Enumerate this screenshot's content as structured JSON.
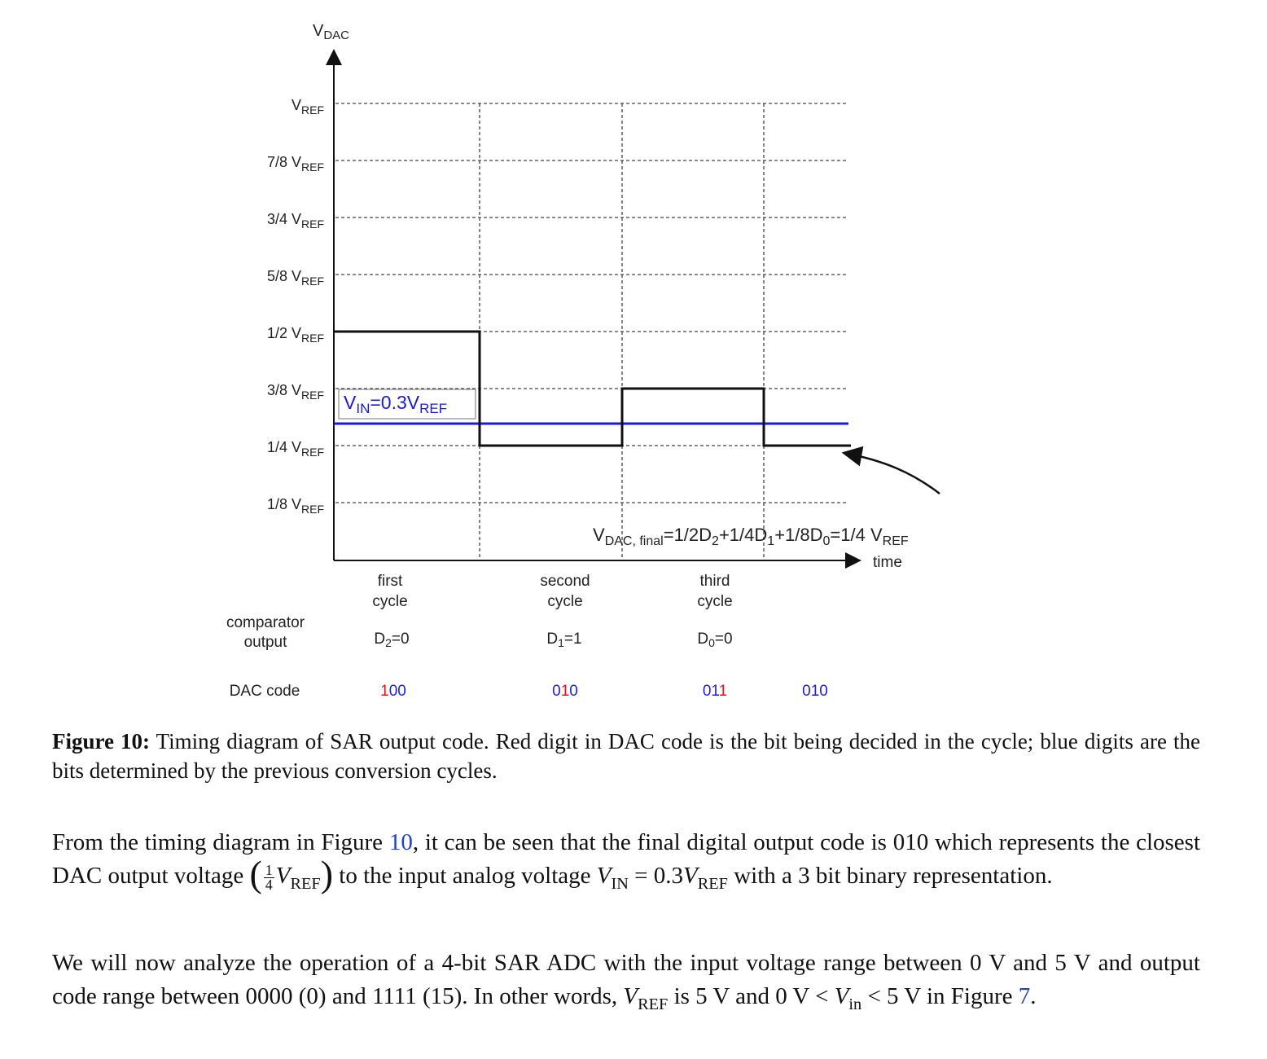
{
  "diagram": {
    "y_axis_label": "V",
    "y_axis_label_sub": "DAC",
    "x_axis_label": "time",
    "y_ticks": [
      {
        "main": "V",
        "sub": "REF"
      },
      {
        "main": "7/8 V",
        "sub": "REF"
      },
      {
        "main": "3/4 V",
        "sub": "REF"
      },
      {
        "main": "5/8 V",
        "sub": "REF"
      },
      {
        "main": "1/2 V",
        "sub": "REF"
      },
      {
        "main": "3/8 V",
        "sub": "REF"
      },
      {
        "main": "1/4 V",
        "sub": "REF"
      },
      {
        "main": "1/8 V",
        "sub": "REF"
      }
    ],
    "vin_label": {
      "v": "V",
      "sub1": "IN",
      "mid": "=0.3V",
      "sub2": "REF"
    },
    "vdac_final_label": {
      "a": "V",
      "a_sub": "DAC, final",
      "b": "=1/2D",
      "b_sub": "2",
      "c": "+1/4D",
      "c_sub": "1",
      "d": "+1/8D",
      "d_sub": "0",
      "e": "=1/4 V",
      "e_sub": "REF"
    },
    "cycles": [
      {
        "line1": "first",
        "line2": "cycle",
        "bit": "D",
        "bit_sub": "2",
        "bit_val": "=0"
      },
      {
        "line1": "second",
        "line2": "cycle",
        "bit": "D",
        "bit_sub": "1",
        "bit_val": "=1"
      },
      {
        "line1": "third",
        "line2": "cycle",
        "bit": "D",
        "bit_sub": "0",
        "bit_val": "=0"
      }
    ],
    "row_labels": {
      "comparator_line1": "comparator",
      "comparator_line2": "output",
      "dac_code": "DAC code"
    },
    "dac_codes": [
      {
        "code": "100",
        "decided_digit": 0
      },
      {
        "code": "010",
        "decided_digit": 1
      },
      {
        "code": "011",
        "decided_digit": 2
      },
      {
        "code": "010",
        "decided_digit": -1
      }
    ],
    "colors": {
      "red": "#e8141b",
      "blue": "#1f1fd6",
      "vin_line": "#1a1ad8",
      "dac_line": "#111111",
      "grid": "#444444"
    }
  },
  "caption": {
    "label": "Figure 10:",
    "text": " Timing diagram of SAR output code. Red digit in DAC code is the bit being decided in the cycle; blue digits are the bits determined by the previous conversion cycles."
  },
  "paragraph1": {
    "t1": "From the timing diagram in Figure ",
    "ref": "10",
    "t2": ", it can be seen that the final digital output code is 010 which represents the closest DAC output voltage ",
    "frac_num": "1",
    "frac_den": "4",
    "vref": "V",
    "vref_sub": "REF",
    "t3": " to the input analog voltage ",
    "vin": "V",
    "vin_sub": "IN",
    "t4": " = 0.3",
    "vref2": "V",
    "vref2_sub": "REF",
    "t5": " with a 3 bit binary representation."
  },
  "paragraph2": {
    "t1": "We will now analyze the operation of a 4-bit SAR ADC with the input voltage range between 0 V and 5 V and output code range between 0000 (0) and 1111 (15). In other words, ",
    "vref": "V",
    "vref_sub": "REF",
    "t2": " is 5 V and 0 V < ",
    "vin": "V",
    "vin_sub": "in",
    "t3": " < 5 V in Figure ",
    "ref": "7",
    "t4": "."
  }
}
